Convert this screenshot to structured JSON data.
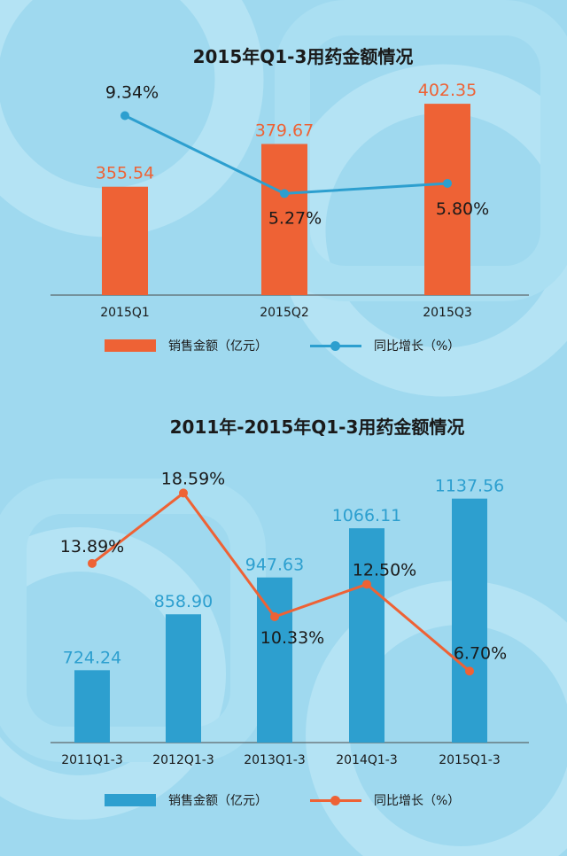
{
  "colors": {
    "background": "#9fd9ef",
    "chart1_bar": "#ee6235",
    "chart1_line": "#2d9fcf",
    "chart2_bar": "#2d9fcf",
    "chart2_line": "#ee6235"
  },
  "charts": [
    {
      "title": "2015年Q1-3用药金额情况",
      "legend": {
        "bar": "销售金额（亿元）",
        "line": "同比增长（%）"
      }
    },
    {
      "title": "2011年-2015年Q1-3用药金额情况",
      "legend": {
        "bar": "销售金额（亿元）",
        "line": "同比增长（%）"
      }
    }
  ],
  "chart_data": [
    {
      "type": "bar",
      "title": "2015年Q1-3用药金额情况",
      "categories": [
        "2015Q1",
        "2015Q2",
        "2015Q3"
      ],
      "series": [
        {
          "name": "销售金额（亿元）",
          "type": "bar",
          "values": [
            355.54,
            379.67,
            402.35
          ],
          "labels": [
            "355.54",
            "379.67",
            "402.35"
          ]
        },
        {
          "name": "同比增长（%）",
          "type": "line",
          "values": [
            9.34,
            5.27,
            5.8
          ],
          "labels": [
            "9.34%",
            "5.27%",
            "5.80%"
          ]
        }
      ],
      "legend_position": "bottom",
      "grid": false
    },
    {
      "type": "bar",
      "title": "2011年-2015年Q1-3用药金额情况",
      "categories": [
        "2011Q1-3",
        "2012Q1-3",
        "2013Q1-3",
        "2014Q1-3",
        "2015Q1-3"
      ],
      "series": [
        {
          "name": "销售金额（亿元）",
          "type": "bar",
          "values": [
            724.24,
            858.9,
            947.63,
            1066.11,
            1137.56
          ],
          "labels": [
            "724.24",
            "858.90",
            "947.63",
            "1066.11",
            "1137.56"
          ]
        },
        {
          "name": "同比增长（%）",
          "type": "line",
          "values": [
            13.89,
            18.59,
            10.33,
            12.5,
            6.7
          ],
          "labels": [
            "13.89%",
            "18.59%",
            "10.33%",
            "12.50%",
            "6.70%"
          ]
        }
      ],
      "legend_position": "bottom",
      "grid": false
    }
  ]
}
